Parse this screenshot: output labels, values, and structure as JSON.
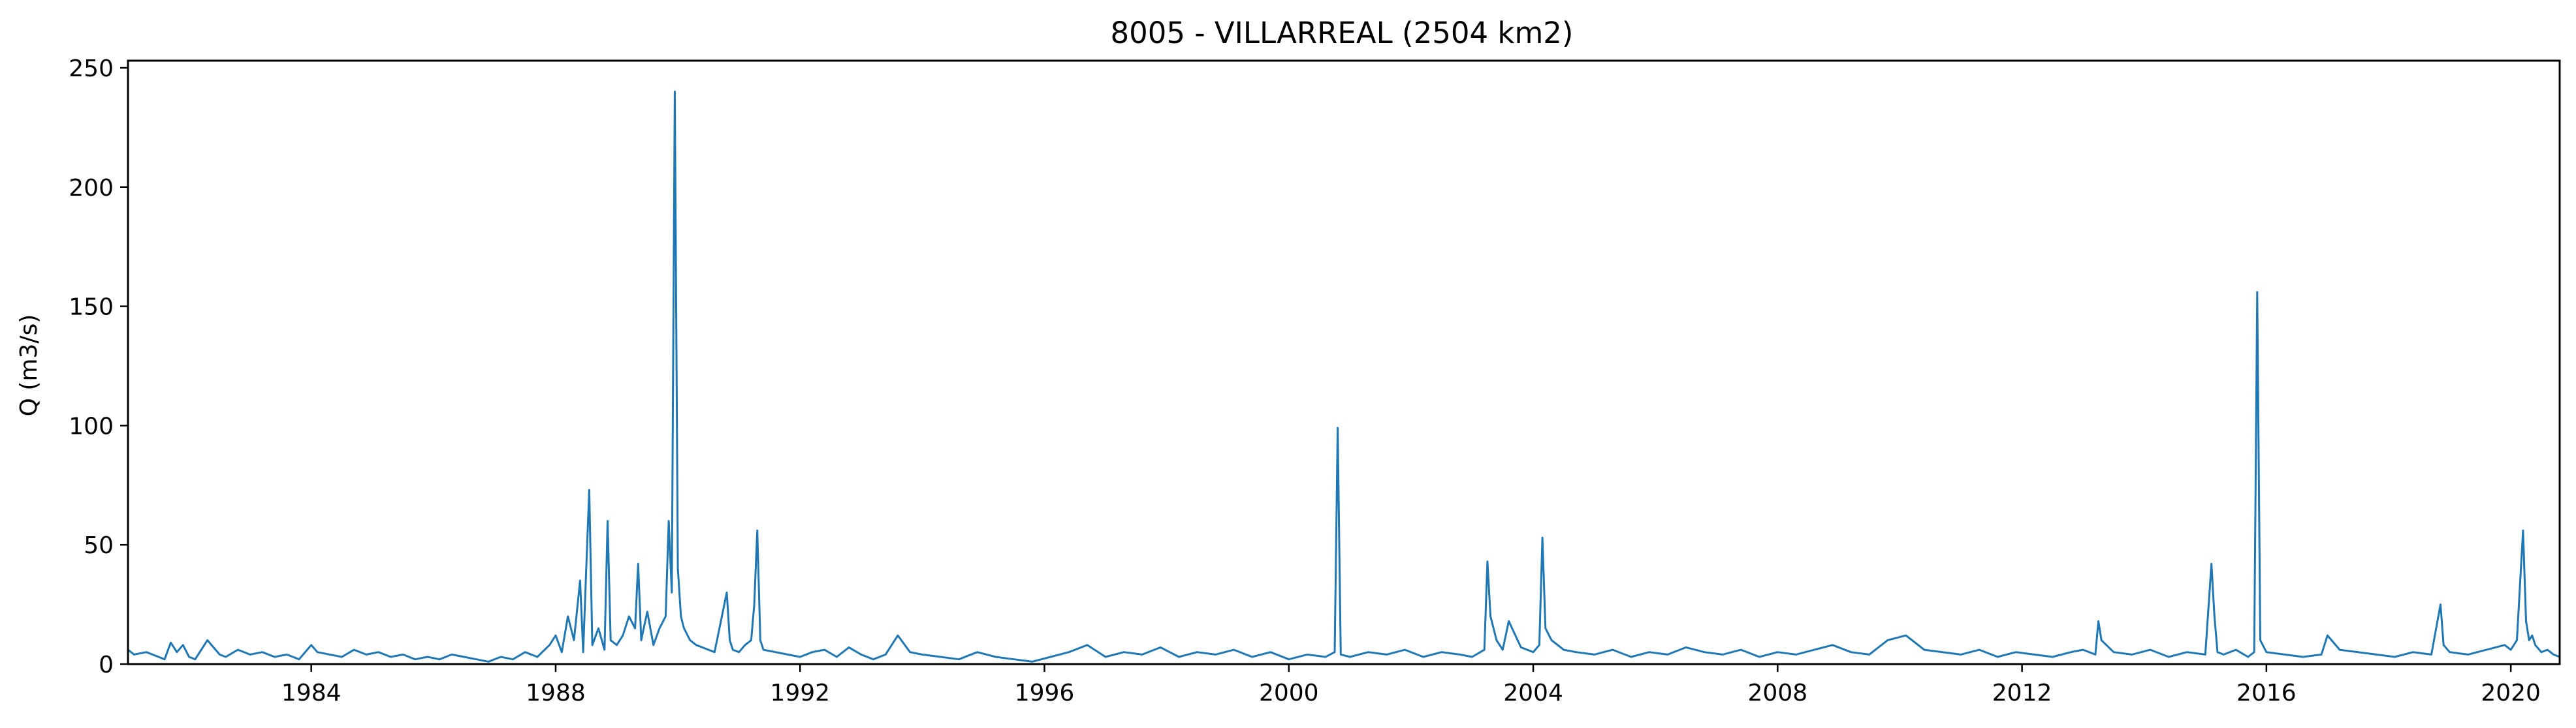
{
  "chart_data": {
    "type": "line",
    "title": "8005 - VILLARREAL (2504 km2)",
    "xlabel": "",
    "ylabel": "Q (m3/s)",
    "xlim": [
      1981.0,
      2020.8
    ],
    "ylim": [
      0,
      253
    ],
    "x_ticks": [
      {
        "value": 1984,
        "label": "1984"
      },
      {
        "value": 1988,
        "label": "1988"
      },
      {
        "value": 1992,
        "label": "1992"
      },
      {
        "value": 1996,
        "label": "1996"
      },
      {
        "value": 2000,
        "label": "2000"
      },
      {
        "value": 2004,
        "label": "2004"
      },
      {
        "value": 2008,
        "label": "2008"
      },
      {
        "value": 2012,
        "label": "2012"
      },
      {
        "value": 2016,
        "label": "2016"
      },
      {
        "value": 2020,
        "label": "2020"
      }
    ],
    "y_ticks": [
      {
        "value": 0,
        "label": "0"
      },
      {
        "value": 50,
        "label": "50"
      },
      {
        "value": 100,
        "label": "100"
      },
      {
        "value": 150,
        "label": "150"
      },
      {
        "value": 200,
        "label": "200"
      },
      {
        "value": 250,
        "label": "250"
      }
    ],
    "grid": false,
    "color": "#1f77b4",
    "series": [
      {
        "x": [
          1981.0,
          1981.1,
          1981.3,
          1981.5,
          1981.6,
          1981.7,
          1981.8,
          1981.9,
          1982.0,
          1982.1,
          1982.3,
          1982.4,
          1982.5,
          1982.6,
          1982.8,
          1983.0,
          1983.2,
          1983.4,
          1983.6,
          1983.8,
          1984.0,
          1984.1,
          1984.3,
          1984.5,
          1984.7,
          1984.9,
          1985.1,
          1985.3,
          1985.5,
          1985.7,
          1985.9,
          1986.1,
          1986.3,
          1986.5,
          1986.7,
          1986.9,
          1987.1,
          1987.3,
          1987.5,
          1987.7,
          1987.9,
          1988.0,
          1988.1,
          1988.2,
          1988.3,
          1988.4,
          1988.45,
          1988.5,
          1988.55,
          1988.6,
          1988.7,
          1988.8,
          1988.85,
          1988.9,
          1989.0,
          1989.1,
          1989.2,
          1989.3,
          1989.35,
          1989.4,
          1989.5,
          1989.6,
          1989.7,
          1989.8,
          1989.85,
          1989.9,
          1989.95,
          1990.0,
          1990.05,
          1990.1,
          1990.2,
          1990.3,
          1990.4,
          1990.6,
          1990.8,
          1990.85,
          1990.9,
          1991.0,
          1991.1,
          1991.2,
          1991.25,
          1991.3,
          1991.35,
          1991.4,
          1991.6,
          1991.8,
          1992.0,
          1992.2,
          1992.4,
          1992.6,
          1992.8,
          1993.0,
          1993.2,
          1993.4,
          1993.6,
          1993.8,
          1994.0,
          1994.3,
          1994.6,
          1994.9,
          1995.2,
          1995.5,
          1995.8,
          1996.1,
          1996.4,
          1996.7,
          1997.0,
          1997.3,
          1997.6,
          1997.9,
          1998.2,
          1998.5,
          1998.8,
          1999.1,
          1999.4,
          1999.7,
          2000.0,
          2000.3,
          2000.6,
          2000.75,
          2000.8,
          2000.85,
          2001.0,
          2001.3,
          2001.6,
          2001.9,
          2002.2,
          2002.5,
          2002.8,
          2003.0,
          2003.2,
          2003.25,
          2003.3,
          2003.4,
          2003.5,
          2003.6,
          2003.8,
          2004.0,
          2004.1,
          2004.15,
          2004.2,
          2004.3,
          2004.5,
          2004.7,
          2005.0,
          2005.3,
          2005.6,
          2005.9,
          2006.2,
          2006.5,
          2006.8,
          2007.1,
          2007.4,
          2007.7,
          2008.0,
          2008.3,
          2008.6,
          2008.9,
          2009.2,
          2009.5,
          2009.8,
          2010.1,
          2010.4,
          2010.7,
          2011.0,
          2011.3,
          2011.6,
          2011.9,
          2012.2,
          2012.5,
          2012.8,
          2013.0,
          2013.2,
          2013.25,
          2013.3,
          2013.5,
          2013.8,
          2014.1,
          2014.4,
          2014.7,
          2015.0,
          2015.1,
          2015.15,
          2015.2,
          2015.3,
          2015.5,
          2015.7,
          2015.8,
          2015.85,
          2015.9,
          2016.0,
          2016.3,
          2016.6,
          2016.9,
          2017.0,
          2017.2,
          2017.5,
          2017.8,
          2018.1,
          2018.4,
          2018.7,
          2018.85,
          2018.9,
          2019.0,
          2019.3,
          2019.6,
          2019.9,
          2020.0,
          2020.1,
          2020.2,
          2020.25,
          2020.3,
          2020.35,
          2020.4,
          2020.5,
          2020.6,
          2020.7,
          2020.8
        ],
        "y": [
          6,
          4,
          5,
          3,
          2,
          9,
          5,
          8,
          3,
          2,
          10,
          7,
          4,
          3,
          6,
          4,
          5,
          3,
          4,
          2,
          8,
          5,
          4,
          3,
          6,
          4,
          5,
          3,
          4,
          2,
          3,
          2,
          4,
          3,
          2,
          1,
          3,
          2,
          5,
          3,
          8,
          12,
          5,
          20,
          10,
          35,
          5,
          40,
          73,
          8,
          15,
          6,
          60,
          10,
          8,
          12,
          20,
          15,
          42,
          10,
          22,
          8,
          15,
          20,
          60,
          30,
          240,
          40,
          20,
          15,
          10,
          8,
          7,
          5,
          30,
          10,
          6,
          5,
          8,
          10,
          25,
          56,
          10,
          6,
          5,
          4,
          3,
          5,
          6,
          3,
          7,
          4,
          2,
          4,
          12,
          5,
          4,
          3,
          2,
          5,
          3,
          2,
          1,
          3,
          5,
          8,
          3,
          5,
          4,
          7,
          3,
          5,
          4,
          6,
          3,
          5,
          2,
          4,
          3,
          5,
          99,
          4,
          3,
          5,
          4,
          6,
          3,
          5,
          4,
          3,
          6,
          43,
          20,
          10,
          6,
          18,
          7,
          5,
          8,
          53,
          15,
          10,
          6,
          5,
          4,
          6,
          3,
          5,
          4,
          7,
          5,
          4,
          6,
          3,
          5,
          4,
          6,
          8,
          5,
          4,
          10,
          12,
          6,
          5,
          4,
          6,
          3,
          5,
          4,
          3,
          5,
          6,
          4,
          18,
          10,
          5,
          4,
          6,
          3,
          5,
          4,
          42,
          20,
          5,
          4,
          6,
          3,
          5,
          156,
          10,
          5,
          4,
          3,
          4,
          12,
          6,
          5,
          4,
          3,
          5,
          4,
          25,
          8,
          5,
          4,
          6,
          8,
          6,
          10,
          56,
          18,
          10,
          12,
          8,
          5,
          6,
          4,
          3
        ]
      }
    ]
  }
}
